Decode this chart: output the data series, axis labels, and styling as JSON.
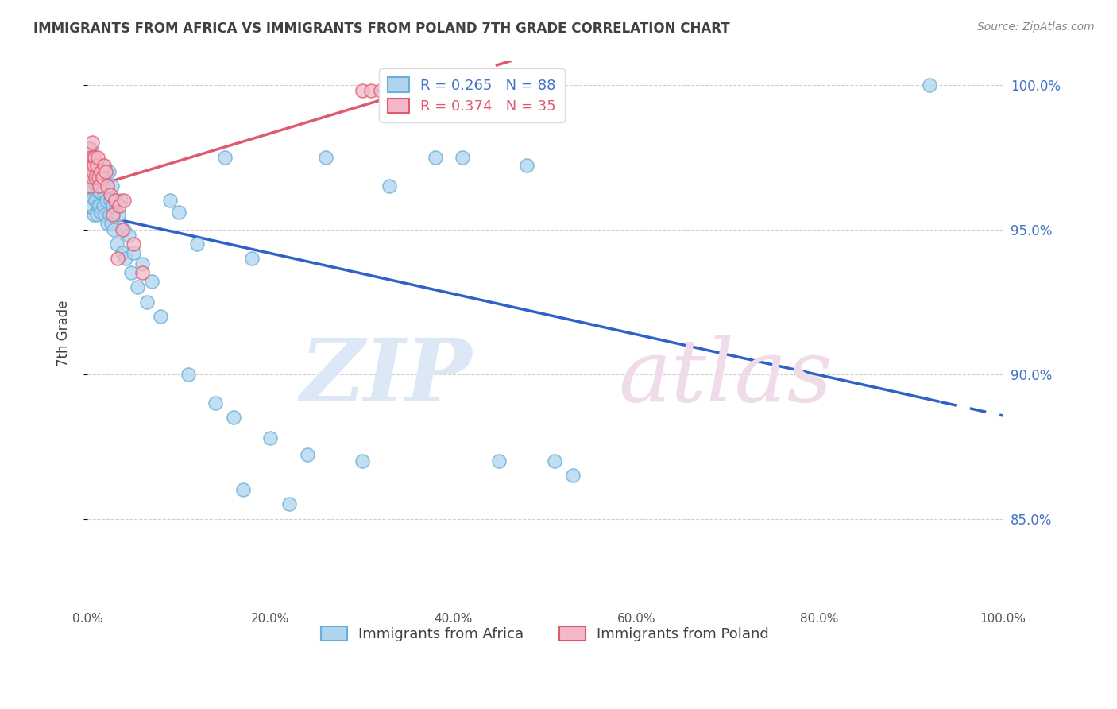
{
  "title": "IMMIGRANTS FROM AFRICA VS IMMIGRANTS FROM POLAND 7TH GRADE CORRELATION CHART",
  "source": "Source: ZipAtlas.com",
  "ylabel": "7th Grade",
  "series_africa": {
    "label": "Immigrants from Africa",
    "R": 0.265,
    "N": 88,
    "face_color": "#aed4f0",
    "edge_color": "#6baed6"
  },
  "series_poland": {
    "label": "Immigrants from Poland",
    "R": 0.374,
    "N": 35,
    "face_color": "#f4b8c8",
    "edge_color": "#e05a6e"
  },
  "x_min": 0.0,
  "x_max": 1.0,
  "y_min": 0.82,
  "y_max": 1.008,
  "y_ticks": [
    0.85,
    0.9,
    0.95,
    1.0
  ],
  "y_tick_labels": [
    "85.0%",
    "90.0%",
    "95.0%",
    "100.0%"
  ],
  "x_ticks": [
    0.0,
    0.2,
    0.4,
    0.6,
    0.8,
    1.0
  ],
  "x_tick_labels": [
    "0.0%",
    "20.0%",
    "40.0%",
    "60.0%",
    "80.0%",
    "100.0%"
  ],
  "africa_line_color": "#3060c8",
  "poland_line_color": "#e05a6e",
  "legend_text_color_africa": "#4472c4",
  "legend_text_color_poland": "#e05a6e",
  "right_axis_color": "#4472c4",
  "grid_color": "#d0d0d0",
  "title_color": "#404040",
  "watermark_zip_color": "#dce8f5",
  "watermark_atlas_color": "#f0dce8",
  "africa_x": [
    0.001,
    0.002,
    0.002,
    0.003,
    0.003,
    0.003,
    0.004,
    0.004,
    0.005,
    0.005,
    0.005,
    0.006,
    0.006,
    0.006,
    0.007,
    0.007,
    0.007,
    0.008,
    0.008,
    0.009,
    0.009,
    0.01,
    0.01,
    0.011,
    0.011,
    0.012,
    0.012,
    0.013,
    0.013,
    0.014,
    0.014,
    0.015,
    0.015,
    0.016,
    0.016,
    0.017,
    0.017,
    0.018,
    0.019,
    0.019,
    0.02,
    0.021,
    0.022,
    0.022,
    0.023,
    0.024,
    0.025,
    0.026,
    0.027,
    0.028,
    0.029,
    0.03,
    0.032,
    0.034,
    0.036,
    0.038,
    0.04,
    0.042,
    0.045,
    0.048,
    0.05,
    0.055,
    0.06,
    0.065,
    0.07,
    0.08,
    0.09,
    0.1,
    0.11,
    0.12,
    0.14,
    0.16,
    0.18,
    0.2,
    0.24,
    0.26,
    0.3,
    0.33,
    0.38,
    0.41,
    0.45,
    0.48,
    0.51,
    0.53,
    0.15,
    0.17,
    0.22,
    0.92
  ],
  "africa_y": [
    0.97,
    0.974,
    0.967,
    0.972,
    0.966,
    0.978,
    0.963,
    0.969,
    0.971,
    0.965,
    0.958,
    0.973,
    0.961,
    0.968,
    0.964,
    0.97,
    0.955,
    0.966,
    0.972,
    0.96,
    0.968,
    0.965,
    0.955,
    0.972,
    0.958,
    0.963,
    0.97,
    0.958,
    0.965,
    0.972,
    0.963,
    0.968,
    0.956,
    0.972,
    0.965,
    0.958,
    0.972,
    0.963,
    0.955,
    0.966,
    0.97,
    0.96,
    0.952,
    0.965,
    0.97,
    0.955,
    0.96,
    0.952,
    0.965,
    0.958,
    0.95,
    0.96,
    0.945,
    0.955,
    0.96,
    0.942,
    0.95,
    0.94,
    0.948,
    0.935,
    0.942,
    0.93,
    0.938,
    0.925,
    0.932,
    0.92,
    0.96,
    0.956,
    0.9,
    0.945,
    0.89,
    0.885,
    0.94,
    0.878,
    0.872,
    0.975,
    0.87,
    0.965,
    0.975,
    0.975,
    0.87,
    0.972,
    0.87,
    0.865,
    0.975,
    0.86,
    0.855,
    1.0
  ],
  "poland_x": [
    0.001,
    0.002,
    0.003,
    0.003,
    0.004,
    0.005,
    0.005,
    0.006,
    0.006,
    0.007,
    0.008,
    0.009,
    0.01,
    0.011,
    0.012,
    0.013,
    0.015,
    0.016,
    0.018,
    0.02,
    0.022,
    0.025,
    0.028,
    0.03,
    0.033,
    0.035,
    0.038,
    0.04,
    0.05,
    0.06,
    0.3,
    0.31,
    0.32,
    0.33,
    0.34
  ],
  "poland_y": [
    0.971,
    0.978,
    0.965,
    0.975,
    0.972,
    0.968,
    0.98,
    0.975,
    0.97,
    0.972,
    0.975,
    0.968,
    0.972,
    0.975,
    0.968,
    0.965,
    0.97,
    0.968,
    0.972,
    0.97,
    0.965,
    0.962,
    0.955,
    0.96,
    0.94,
    0.958,
    0.95,
    0.96,
    0.945,
    0.935,
    0.998,
    0.998,
    0.998,
    0.998,
    0.998
  ]
}
